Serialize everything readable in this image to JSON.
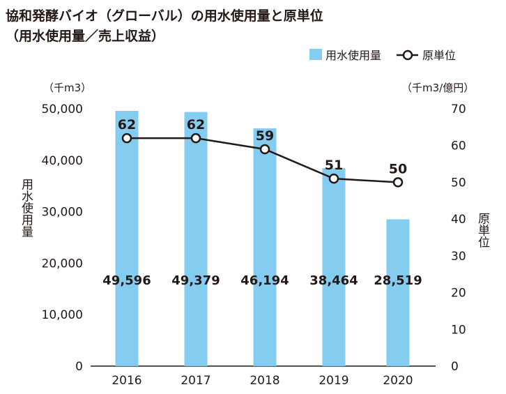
{
  "title_line1": "協和発酵バイオ（グローバル）の用水使用量と原単位",
  "title_line2": "（用水使用量／売上収益）",
  "chart_data": {
    "type": "bar",
    "categories": [
      "2016",
      "2017",
      "2018",
      "2019",
      "2020"
    ],
    "series": [
      {
        "name": "用水使用量",
        "type": "bar",
        "axis": "left",
        "values": [
          49596,
          49379,
          46194,
          38464,
          28519
        ],
        "labels": [
          "49,596",
          "49,379",
          "46,194",
          "38,464",
          "28,519"
        ]
      },
      {
        "name": "原単位",
        "type": "line",
        "axis": "right",
        "values": [
          62,
          62,
          59,
          51,
          50
        ]
      }
    ],
    "y_left": {
      "label": "用水使用量",
      "unit": "（千m3）",
      "range": [
        0,
        50000
      ],
      "ticks": [
        "0",
        "10,000",
        "20,000",
        "30,000",
        "40,000",
        "50,000"
      ]
    },
    "y_right": {
      "label": "原単位",
      "unit": "（千m3/億円）",
      "range": [
        0,
        70
      ],
      "ticks": [
        "0",
        "10",
        "20",
        "30",
        "40",
        "50",
        "60",
        "70"
      ]
    },
    "colors": {
      "bar": "#84cdf1",
      "line": "#231815",
      "marker_fill": "#ffffff"
    },
    "legend_position": "top-right",
    "grid": false
  }
}
